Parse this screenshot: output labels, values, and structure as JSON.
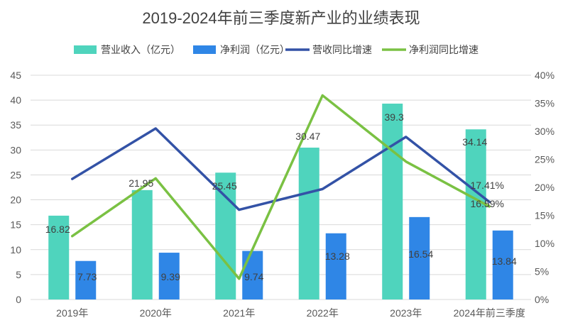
{
  "chart_data": {
    "type": "bar",
    "title": "2019-2024年前三季度新产业的业绩表现",
    "categories": [
      "2019年",
      "2020年",
      "2021年",
      "2022年",
      "2023年",
      "2024年前三季度"
    ],
    "series": [
      {
        "name": "营业收入（亿元）",
        "type": "bar",
        "axis": "left",
        "color": "#4fd4bd",
        "values": [
          16.82,
          21.95,
          25.45,
          30.47,
          39.3,
          34.14
        ],
        "labels": [
          "16.82",
          "21.95",
          "25.45",
          "30.47",
          "39.3",
          "34.14"
        ]
      },
      {
        "name": "净利润（亿元）",
        "type": "bar",
        "axis": "left",
        "color": "#2f86e6",
        "values": [
          7.73,
          9.39,
          9.74,
          13.28,
          16.54,
          13.84
        ],
        "labels": [
          "7.73",
          "9.39",
          "9.74",
          "13.28",
          "16.54",
          "13.84"
        ]
      },
      {
        "name": "营收同比增速",
        "type": "line",
        "axis": "right",
        "color": "#3352a6",
        "values": [
          21.5,
          30.5,
          16.0,
          19.7,
          29.0,
          17.41
        ],
        "labels": [
          "",
          "",
          "",
          "",
          "",
          "17.41%"
        ]
      },
      {
        "name": "净利润同比增速",
        "type": "line",
        "axis": "right",
        "color": "#7ac143",
        "values": [
          11.3,
          21.6,
          3.7,
          36.4,
          24.6,
          16.59
        ],
        "labels": [
          "",
          "",
          "",
          "",
          "",
          "16.59%"
        ]
      }
    ],
    "ylim_left": [
      0,
      45
    ],
    "yticks_left": [
      "0",
      "5",
      "10",
      "15",
      "20",
      "25",
      "30",
      "35",
      "40",
      "45"
    ],
    "ylim_right": [
      0,
      40
    ],
    "yticks_right": [
      "0%",
      "5%",
      "10%",
      "15%",
      "20%",
      "25%",
      "30%",
      "35%",
      "40%"
    ],
    "grid": true,
    "legend_position": "top"
  }
}
